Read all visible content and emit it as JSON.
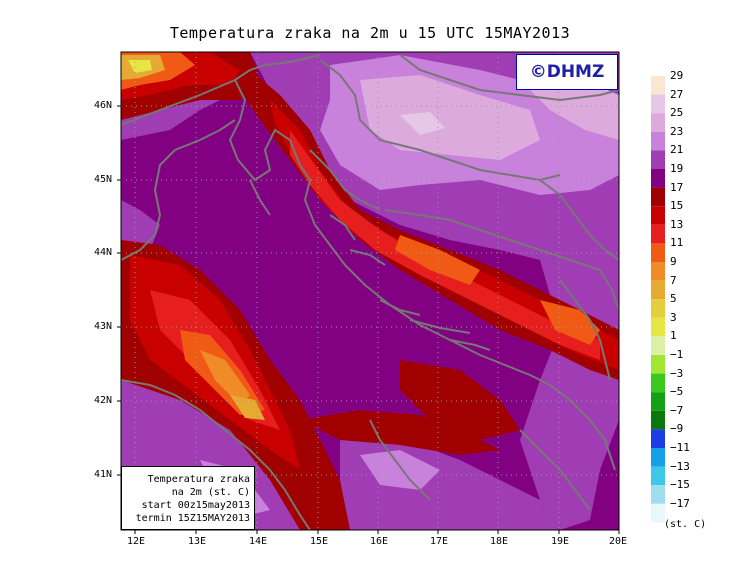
{
  "title": "Temperatura zraka na 2m u 15 UTC 15MAY2013",
  "copyright": "©DHMZ",
  "info_box": {
    "line1": "Temperatura zraka",
    "line2": "na 2m (st. C)",
    "line3": "start 00z15may2013",
    "line4": "termin 15Z15MAY2013"
  },
  "lon_labels": [
    "12E",
    "13E",
    "14E",
    "15E",
    "16E",
    "17E",
    "18E",
    "19E",
    "20E"
  ],
  "lat_labels": [
    "46N",
    "45N",
    "44N",
    "43N",
    "42N",
    "41N"
  ],
  "legend": {
    "units": "(st. C)",
    "labels": [
      "29",
      "27",
      "25",
      "23",
      "21",
      "19",
      "17",
      "15",
      "13",
      "11",
      "9",
      "7",
      "5",
      "3",
      "1",
      "−1",
      "−3",
      "−5",
      "−7",
      "−9",
      "−11",
      "−13",
      "−15",
      "−17"
    ],
    "colors": [
      "#fae6d2",
      "#e6c8e6",
      "#dcaadc",
      "#c882dc",
      "#a03cb4",
      "#820082",
      "#a00000",
      "#c80000",
      "#e61e1e",
      "#f05a14",
      "#f08c28",
      "#e6aa32",
      "#e6cd3c",
      "#e6e646",
      "#dcf0aa",
      "#a0e632",
      "#3cc81e",
      "#14a014",
      "#0a780a",
      "#1e3ce6",
      "#14a0e6",
      "#3cc8e6",
      "#a0dcf0",
      "#e6f8fa"
    ]
  }
}
